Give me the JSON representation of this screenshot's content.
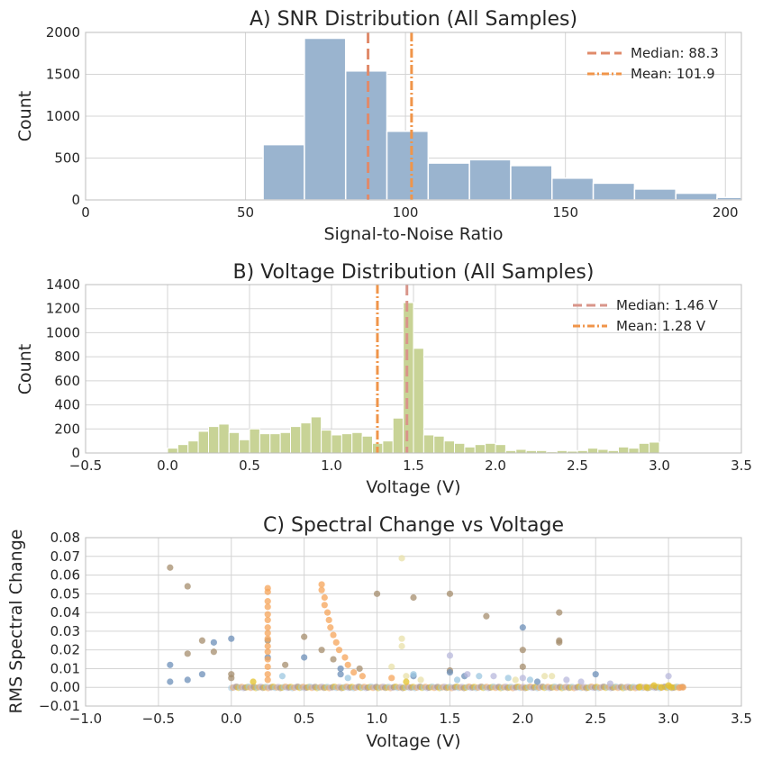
{
  "chart_data": [
    {
      "type": "bar",
      "title": "A) SNR Distribution (All Samples)",
      "xlabel": "Signal-to-Noise Ratio",
      "ylabel": "Count",
      "xlim": [
        0,
        205
      ],
      "ylim": [
        0,
        2000
      ],
      "xticks": [
        "0",
        "50",
        "100",
        "150",
        "200"
      ],
      "xtick_values": [
        0,
        50,
        100,
        150,
        200
      ],
      "yticks": [
        "0",
        "500",
        "1000",
        "1500",
        "2000"
      ],
      "ytick_values": [
        0,
        500,
        1000,
        1500,
        2000
      ],
      "color": "#9ab4cf",
      "bins": [
        {
          "x0": 55.5,
          "x1": 68.4,
          "count": 660
        },
        {
          "x0": 68.4,
          "x1": 81.3,
          "count": 1930
        },
        {
          "x0": 81.3,
          "x1": 94.2,
          "count": 1540
        },
        {
          "x0": 94.2,
          "x1": 107.1,
          "count": 820
        },
        {
          "x0": 107.1,
          "x1": 120.0,
          "count": 440
        },
        {
          "x0": 120.0,
          "x1": 132.9,
          "count": 480
        },
        {
          "x0": 132.9,
          "x1": 145.8,
          "count": 410
        },
        {
          "x0": 145.8,
          "x1": 158.7,
          "count": 260
        },
        {
          "x0": 158.7,
          "x1": 171.6,
          "count": 200
        },
        {
          "x0": 171.6,
          "x1": 184.5,
          "count": 130
        },
        {
          "x0": 184.5,
          "x1": 197.4,
          "count": 80
        },
        {
          "x0": 197.4,
          "x1": 210.3,
          "count": 30
        }
      ],
      "lines": [
        {
          "name": "median",
          "label": "Median: 88.3",
          "value": 88.3,
          "color": "#e08a6a",
          "dash": "12,6"
        },
        {
          "name": "mean",
          "label": "Mean: 101.9",
          "value": 101.9,
          "color": "#f0954a",
          "dash": "10,3,2,3"
        }
      ],
      "legend": "top-right"
    },
    {
      "type": "bar",
      "title": "B) Voltage Distribution (All Samples)",
      "xlabel": "Voltage (V)",
      "ylabel": "Count",
      "xlim": [
        -0.5,
        3.5
      ],
      "ylim": [
        0,
        1400
      ],
      "xticks": [
        "−0.5",
        "0.0",
        "0.5",
        "1.0",
        "1.5",
        "2.0",
        "2.5",
        "3.0",
        "3.5"
      ],
      "xtick_values": [
        -0.5,
        0,
        0.5,
        1,
        1.5,
        2,
        2.5,
        3,
        3.5
      ],
      "yticks": [
        "0",
        "200",
        "400",
        "600",
        "800",
        "1000",
        "1200",
        "1400"
      ],
      "ytick_values": [
        0,
        200,
        400,
        600,
        800,
        1000,
        1200,
        1400
      ],
      "color": "#c8d396",
      "bin_start": 0.0,
      "bin_width": 0.0625,
      "counts": [
        40,
        70,
        100,
        180,
        220,
        240,
        170,
        110,
        200,
        160,
        160,
        170,
        220,
        250,
        300,
        190,
        150,
        160,
        170,
        140,
        80,
        100,
        290,
        1250,
        870,
        150,
        140,
        100,
        80,
        50,
        70,
        80,
        70,
        20,
        30,
        20,
        20,
        10,
        20,
        15,
        20,
        40,
        30,
        20,
        50,
        40,
        80,
        90
      ],
      "lines": [
        {
          "name": "median",
          "label": "Median: 1.46 V",
          "value": 1.46,
          "color": "#d9958a",
          "dash": "12,6"
        },
        {
          "name": "mean",
          "label": "Mean: 1.28 V",
          "value": 1.28,
          "color": "#f0954a",
          "dash": "10,3,2,3"
        }
      ],
      "legend": "top-right"
    },
    {
      "type": "scatter",
      "title": "C) Spectral Change vs Voltage",
      "xlabel": "Voltage (V)",
      "ylabel": "RMS Spectral Change",
      "xlim": [
        -1.0,
        3.5
      ],
      "ylim": [
        -0.01,
        0.08
      ],
      "xticks": [
        "−1.0",
        "−0.5",
        "0.0",
        "0.5",
        "1.0",
        "1.5",
        "2.0",
        "2.5",
        "3.0",
        "3.5"
      ],
      "xtick_values": [
        -1,
        -0.5,
        0,
        0.5,
        1,
        1.5,
        2,
        2.5,
        3,
        3.5
      ],
      "yticks": [
        "−0.01",
        "0.00",
        "0.01",
        "0.02",
        "0.03",
        "0.04",
        "0.05",
        "0.06",
        "0.07",
        "0.08"
      ],
      "ytick_values": [
        -0.01,
        0,
        0.01,
        0.02,
        0.03,
        0.04,
        0.05,
        0.06,
        0.07,
        0.08
      ],
      "series": [
        {
          "name": "brown",
          "color": "#a58d6e",
          "points": [
            [
              -0.42,
              0.064
            ],
            [
              -0.3,
              0.054
            ],
            [
              -0.3,
              0.018
            ],
            [
              -0.2,
              0.025
            ],
            [
              -0.12,
              0.019
            ],
            [
              0.0,
              0.007
            ],
            [
              0.25,
              0.025
            ],
            [
              0.5,
              0.027
            ],
            [
              0.62,
              0.02
            ],
            [
              0.7,
              0.015
            ],
            [
              1.0,
              0.05
            ],
            [
              1.25,
              0.048
            ],
            [
              1.5,
              0.05
            ],
            [
              1.75,
              0.038
            ],
            [
              2.0,
              0.02
            ],
            [
              2.0,
              0.011
            ],
            [
              2.25,
              0.04
            ],
            [
              2.25,
              0.025
            ],
            [
              2.25,
              0.024
            ],
            [
              0.0,
              0.005
            ],
            [
              0.37,
              0.012
            ],
            [
              0.88,
              0.01
            ],
            [
              1.5,
              0.009
            ]
          ]
        },
        {
          "name": "steelblue",
          "color": "#6c8fb8",
          "points": [
            [
              -0.42,
              0.012
            ],
            [
              -0.42,
              0.003
            ],
            [
              -0.3,
              0.004
            ],
            [
              -0.2,
              0.007
            ],
            [
              -0.12,
              0.024
            ],
            [
              0.0,
              0.026
            ],
            [
              0.25,
              0.016
            ],
            [
              0.5,
              0.016
            ],
            [
              0.75,
              0.01
            ],
            [
              0.75,
              0.007
            ],
            [
              1.25,
              0.006
            ],
            [
              1.5,
              0.008
            ],
            [
              1.6,
              0.006
            ],
            [
              2.0,
              0.032
            ],
            [
              2.5,
              0.007
            ],
            [
              2.1,
              0.003
            ]
          ]
        },
        {
          "name": "orange",
          "color": "#f5a45a",
          "points": [
            [
              0.25,
              0.053
            ],
            [
              0.25,
              0.051
            ],
            [
              0.25,
              0.046
            ],
            [
              0.25,
              0.043
            ],
            [
              0.25,
              0.039
            ],
            [
              0.25,
              0.036
            ],
            [
              0.25,
              0.032
            ],
            [
              0.25,
              0.029
            ],
            [
              0.25,
              0.026
            ],
            [
              0.25,
              0.022
            ],
            [
              0.25,
              0.019
            ],
            [
              0.25,
              0.015
            ],
            [
              0.25,
              0.011
            ],
            [
              0.25,
              0.007
            ],
            [
              0.25,
              0.004
            ],
            [
              0.62,
              0.055
            ],
            [
              0.62,
              0.052
            ],
            [
              0.64,
              0.048
            ],
            [
              0.64,
              0.044
            ],
            [
              0.66,
              0.04
            ],
            [
              0.67,
              0.036
            ],
            [
              0.68,
              0.032
            ],
            [
              0.7,
              0.028
            ],
            [
              0.72,
              0.024
            ],
            [
              0.74,
              0.02
            ],
            [
              0.78,
              0.016
            ],
            [
              0.8,
              0.012
            ],
            [
              0.84,
              0.008
            ],
            [
              0.9,
              0.006
            ],
            [
              1.1,
              0.005
            ],
            [
              3.1,
              0.0
            ],
            [
              3.08,
              0.0
            ]
          ]
        },
        {
          "name": "paleyellow",
          "color": "#e8e0a8",
          "points": [
            [
              1.17,
              0.069
            ],
            [
              1.17,
              0.026
            ],
            [
              1.17,
              0.022
            ],
            [
              1.1,
              0.011
            ],
            [
              1.2,
              0.006
            ],
            [
              1.3,
              0.004
            ],
            [
              1.95,
              0.004
            ],
            [
              2.15,
              0.006
            ],
            [
              2.2,
              0.006
            ]
          ]
        },
        {
          "name": "lavender",
          "color": "#b8b8dc",
          "points": [
            [
              1.5,
              0.017
            ],
            [
              1.62,
              0.007
            ],
            [
              1.8,
              0.006
            ],
            [
              2.0,
              0.005
            ],
            [
              2.3,
              0.004
            ],
            [
              3.0,
              0.006
            ],
            [
              2.4,
              0.003
            ],
            [
              2.6,
              0.002
            ]
          ]
        },
        {
          "name": "lightblue",
          "color": "#9cc7e0",
          "points": [
            [
              1.25,
              0.007
            ],
            [
              1.7,
              0.006
            ],
            [
              1.9,
              0.005
            ],
            [
              2.05,
              0.004
            ],
            [
              0.35,
              0.006
            ],
            [
              0.8,
              0.005
            ],
            [
              1.55,
              0.004
            ]
          ]
        },
        {
          "name": "gold",
          "color": "#e3c12a",
          "points": [
            [
              2.85,
              0.0
            ],
            [
              2.9,
              0.001
            ],
            [
              2.95,
              0.0
            ],
            [
              3.0,
              0.001
            ],
            [
              3.02,
              0.0
            ],
            [
              2.8,
              0.0
            ],
            [
              0.15,
              0.003
            ],
            [
              1.2,
              0.003
            ]
          ]
        }
      ],
      "baseline_band": {
        "x_from": 0.0,
        "x_to": 3.1,
        "y": 0.0,
        "colors": [
          "#9cc7e0",
          "#f5a45a",
          "#b8b8dc",
          "#a58d6e",
          "#e3c12a"
        ]
      },
      "legend": "none"
    }
  ]
}
